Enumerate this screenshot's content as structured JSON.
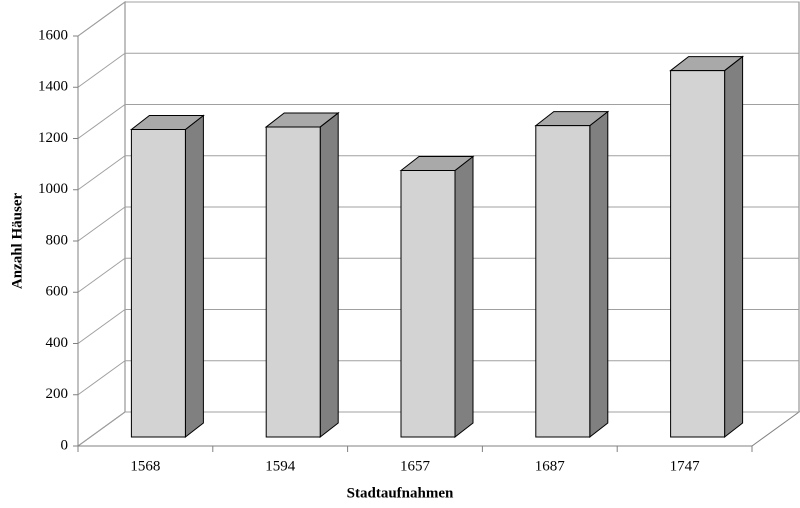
{
  "chart_data": {
    "type": "bar",
    "xlabel": "Stadtaufnahmen",
    "ylabel": "Anzahl Häuser",
    "categories": [
      "1568",
      "1594",
      "1657",
      "1687",
      "1747"
    ],
    "values": [
      1200,
      1210,
      1040,
      1215,
      1430
    ],
    "color": "#d3d3d3",
    "ylim": [
      0,
      1600
    ],
    "yticks": [
      0,
      200,
      400,
      600,
      800,
      1000,
      1200,
      1400,
      1600
    ],
    "grid": true
  }
}
